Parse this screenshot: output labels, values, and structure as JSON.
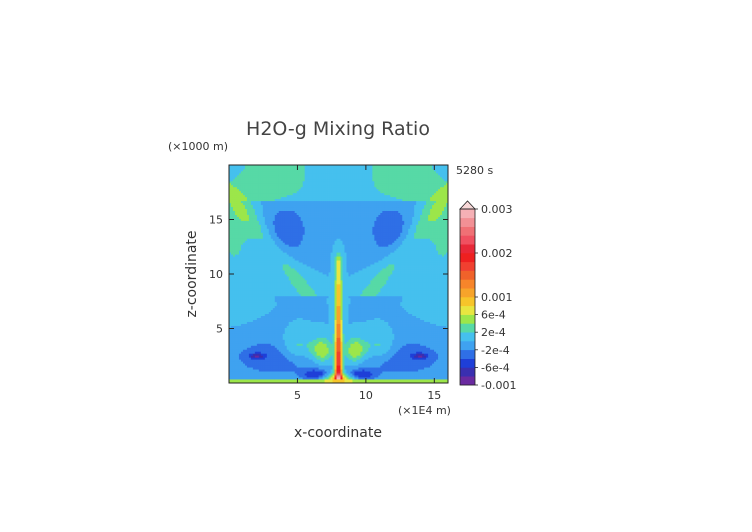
{
  "chart_data": {
    "type": "heatmap",
    "title": "H2O-g Mixing Ratio",
    "xlabel": "x-coordinate",
    "ylabel": "z-coordinate",
    "x_unit": "(×1E4 m)",
    "y_unit": "(×1000 m)",
    "time_label": "5280 s",
    "xlim": [
      0,
      16
    ],
    "ylim": [
      0,
      20
    ],
    "x_ticks": [
      "5",
      "10",
      "15"
    ],
    "x_tick_values": [
      5,
      10,
      15
    ],
    "y_ticks": [
      "5",
      "10",
      "15"
    ],
    "y_tick_values": [
      5,
      10,
      15
    ],
    "colorbar": {
      "labels": [
        "0.003",
        "0.002",
        "0.001",
        "6e-4",
        "2e-4",
        "-2e-4",
        "-6e-4",
        "-0.001"
      ],
      "label_values": [
        0.003,
        0.002,
        0.001,
        0.0006,
        0.0002,
        -0.0002,
        -0.0006,
        -0.001
      ],
      "levels": [
        -0.001,
        -0.0008,
        -0.0006,
        -0.0004,
        -0.0002,
        0,
        0.0002,
        0.0004,
        0.0006,
        0.0008,
        0.001,
        0.0012,
        0.0014,
        0.0016,
        0.0018,
        0.002,
        0.0022,
        0.0024,
        0.0026,
        0.0028,
        0.003
      ],
      "colors": [
        "#6a2aa0",
        "#3a2fb0",
        "#1e3fd8",
        "#2f6fe6",
        "#3fa2f0",
        "#45c0ee",
        "#57d9a6",
        "#9ce64a",
        "#e8e640",
        "#f7c52a",
        "#f7a42a",
        "#f7852a",
        "#f0622a",
        "#f04030",
        "#ee2020",
        "#e82838",
        "#f05060",
        "#f07075",
        "#f29095",
        "#f5b0b5"
      ]
    }
  }
}
